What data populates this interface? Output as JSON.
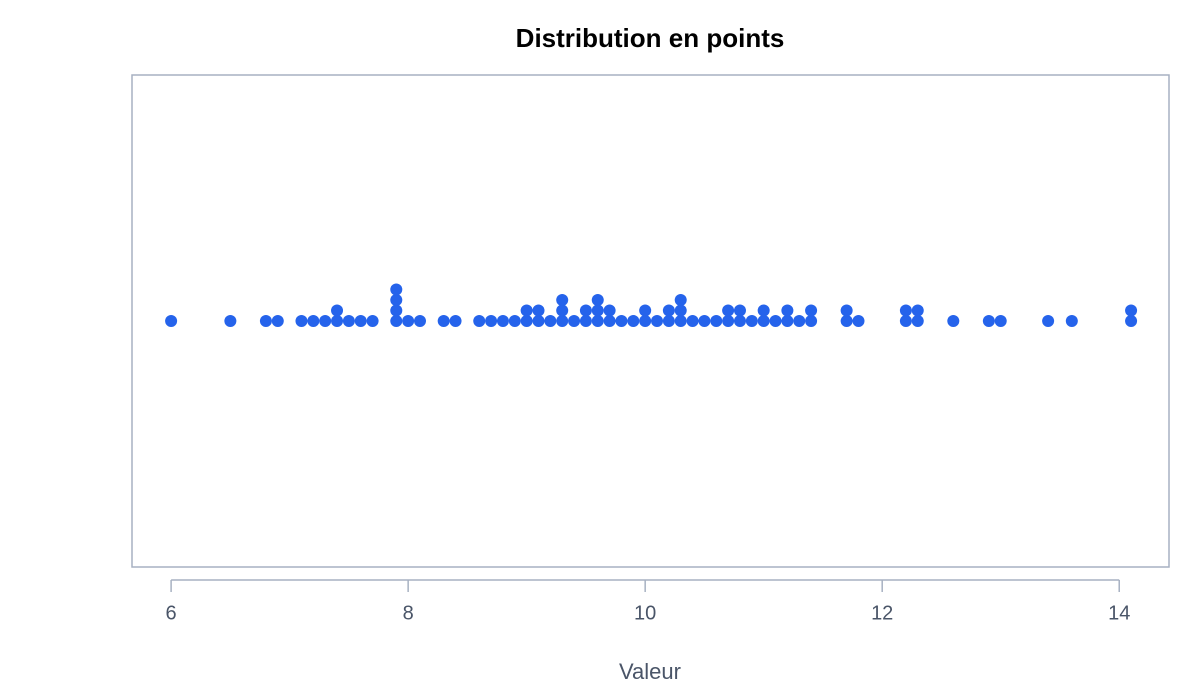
{
  "chart_data": {
    "type": "dotplot",
    "title": "Distribution en points",
    "x_label": "Valeur",
    "color": "#2563eb",
    "values": [
      6.0,
      6.5,
      6.8,
      6.9,
      7.1,
      7.2,
      7.3,
      7.4,
      7.4,
      7.5,
      7.6,
      7.7,
      7.9,
      7.9,
      7.9,
      7.9,
      8.0,
      8.1,
      8.3,
      8.4,
      8.6,
      8.7,
      8.8,
      8.9,
      9.0,
      9.0,
      9.1,
      9.1,
      9.2,
      9.3,
      9.3,
      9.3,
      9.4,
      9.5,
      9.5,
      9.6,
      9.6,
      9.6,
      9.7,
      9.7,
      9.8,
      9.9,
      10.0,
      10.0,
      10.1,
      10.2,
      10.2,
      10.3,
      10.3,
      10.3,
      10.4,
      10.5,
      10.6,
      10.7,
      10.7,
      10.8,
      10.8,
      10.9,
      11.0,
      11.0,
      11.1,
      11.2,
      11.2,
      11.3,
      11.4,
      11.4,
      11.7,
      11.7,
      11.8,
      12.2,
      12.2,
      12.3,
      12.3,
      12.6,
      12.9,
      13.0,
      13.4,
      13.6,
      14.1,
      14.1
    ],
    "xlim": [
      5.67,
      14.42
    ],
    "xticks": [
      6,
      8,
      10,
      12,
      14
    ]
  }
}
